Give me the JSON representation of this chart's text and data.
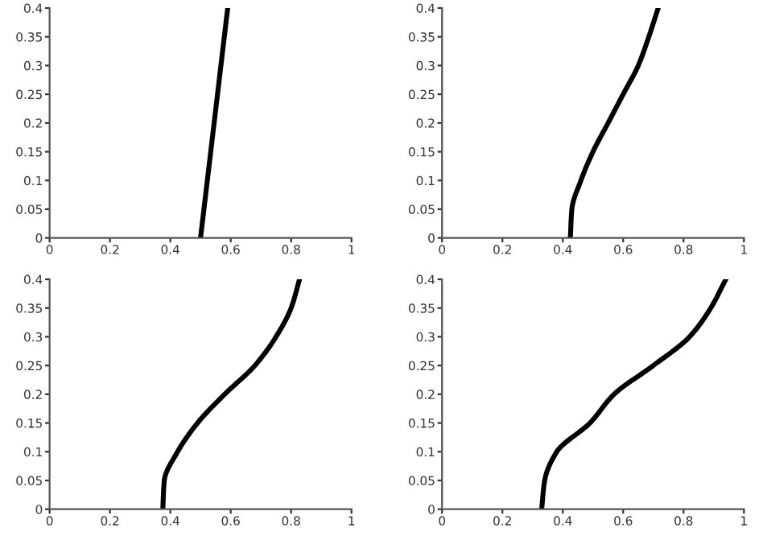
{
  "chart_data": [
    {
      "type": "line",
      "series": [
        {
          "color": "#000000",
          "x": [
            0.5,
            0.59
          ],
          "values": [
            0,
            0.4
          ]
        }
      ],
      "xlim": [
        0,
        1
      ],
      "ylim": [
        0,
        0.4
      ],
      "xticks": [
        0,
        0.2,
        0.4,
        0.6,
        0.8,
        1
      ],
      "yticks": [
        0,
        0.05,
        0.1,
        0.15,
        0.2,
        0.25,
        0.3,
        0.35,
        0.4
      ]
    },
    {
      "type": "line",
      "series": [
        {
          "color": "#000000",
          "x": [
            0.425,
            0.43,
            0.46,
            0.5,
            0.55,
            0.6,
            0.65,
            0.685,
            0.716
          ],
          "values": [
            0,
            0.05,
            0.1,
            0.15,
            0.2,
            0.25,
            0.3,
            0.35,
            0.4
          ]
        }
      ],
      "xlim": [
        0,
        1
      ],
      "ylim": [
        0,
        0.4
      ],
      "xticks": [
        0,
        0.2,
        0.4,
        0.6,
        0.8,
        1
      ],
      "yticks": [
        0,
        0.05,
        0.1,
        0.15,
        0.2,
        0.25,
        0.3,
        0.35,
        0.4
      ]
    },
    {
      "type": "line",
      "series": [
        {
          "color": "#000000",
          "x": [
            0.375,
            0.38,
            0.424,
            0.49,
            0.58,
            0.68,
            0.75,
            0.8,
            0.828
          ],
          "values": [
            0,
            0.05,
            0.1,
            0.15,
            0.2,
            0.25,
            0.3,
            0.35,
            0.4
          ]
        }
      ],
      "xlim": [
        0,
        1
      ],
      "ylim": [
        0,
        0.4
      ],
      "xticks": [
        0,
        0.2,
        0.4,
        0.6,
        0.8,
        1
      ],
      "yticks": [
        0,
        0.05,
        0.1,
        0.15,
        0.2,
        0.25,
        0.3,
        0.35,
        0.4
      ]
    },
    {
      "type": "line",
      "series": [
        {
          "color": "#000000",
          "x": [
            0.33,
            0.34,
            0.38,
            0.49,
            0.57,
            0.7,
            0.82,
            0.89,
            0.94
          ],
          "values": [
            0,
            0.05,
            0.1,
            0.15,
            0.2,
            0.25,
            0.3,
            0.35,
            0.4
          ]
        }
      ],
      "xlim": [
        0,
        1
      ],
      "ylim": [
        0,
        0.4
      ],
      "xticks": [
        0,
        0.2,
        0.4,
        0.6,
        0.8,
        1
      ],
      "yticks": [
        0,
        0.05,
        0.1,
        0.15,
        0.2,
        0.25,
        0.3,
        0.35,
        0.4
      ]
    }
  ]
}
